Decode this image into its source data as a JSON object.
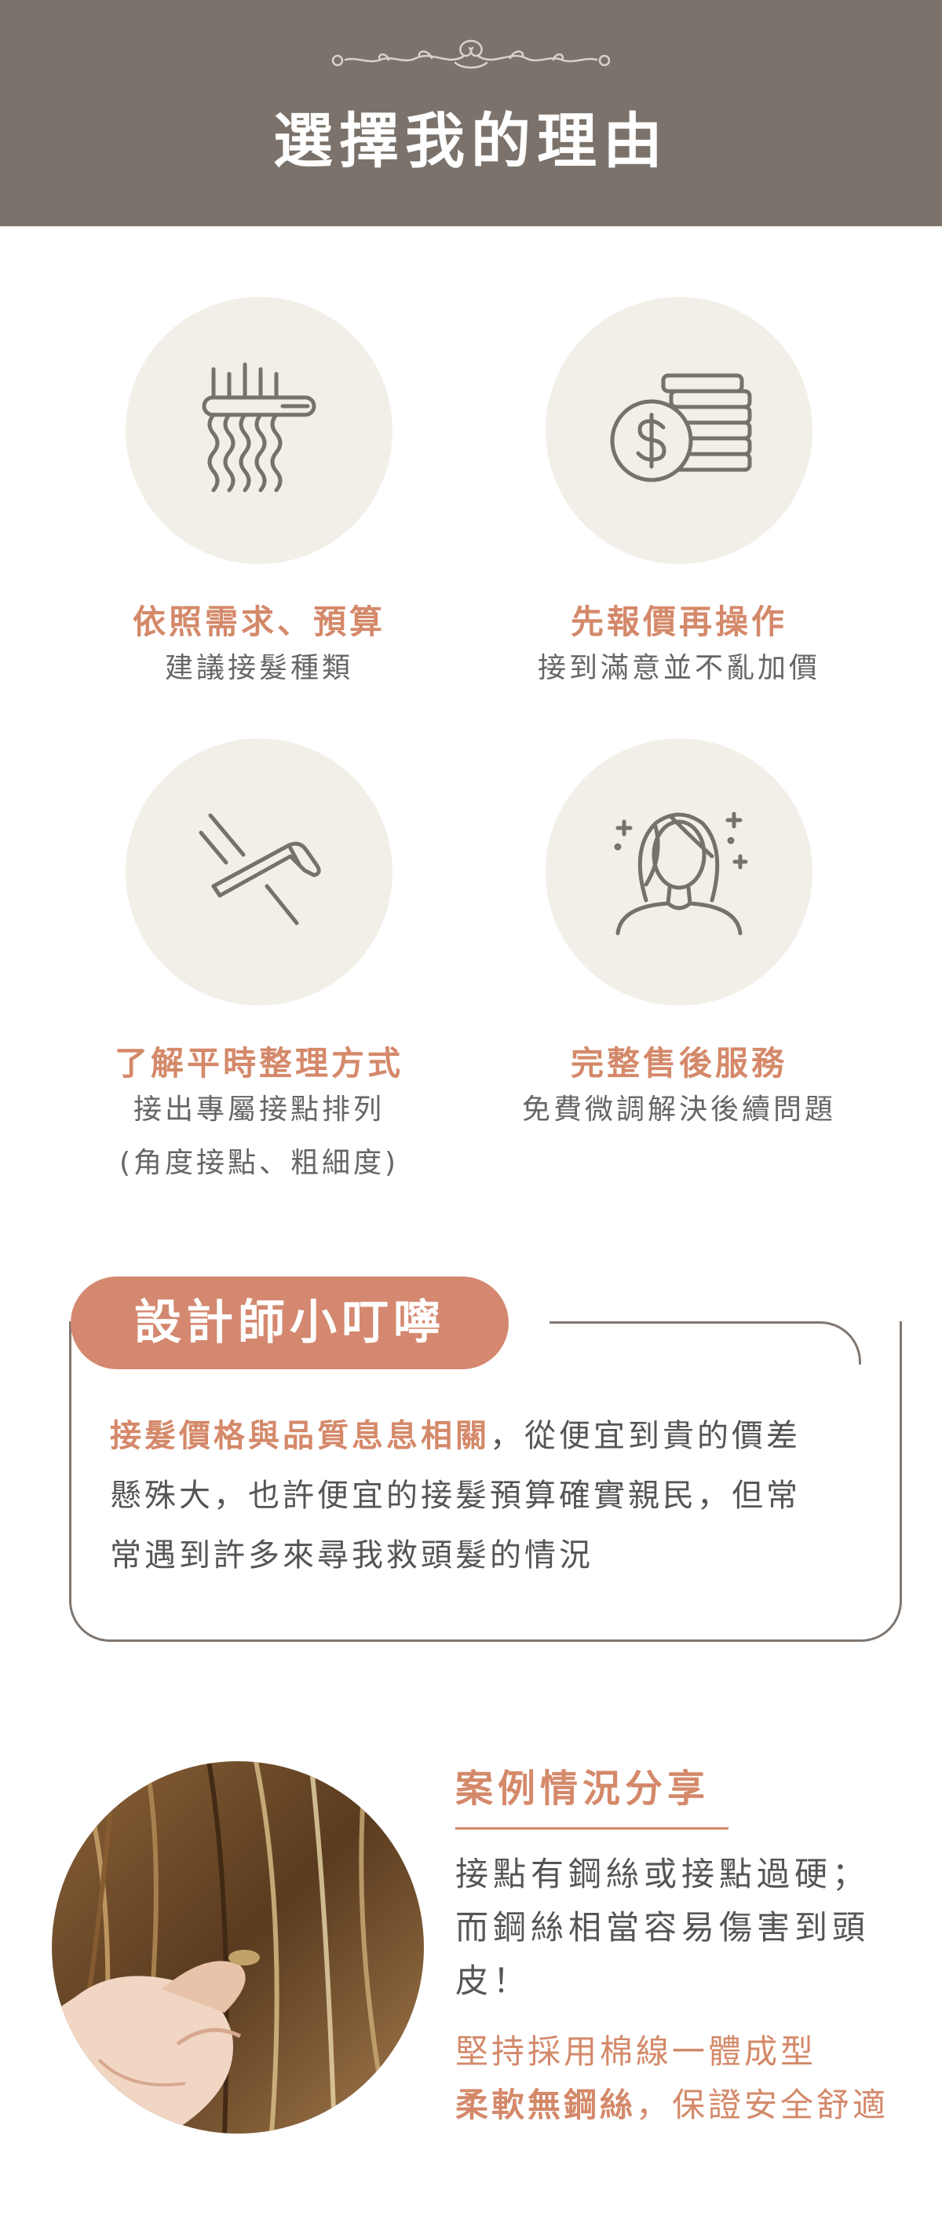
{
  "header": {
    "title": "選擇我的理由"
  },
  "features": [
    {
      "icon": "hair-extension-clip-icon",
      "title": "依照需求、預算",
      "desc": [
        "建議接髮種類"
      ]
    },
    {
      "icon": "coins-money-icon",
      "title": "先報價再操作",
      "desc": [
        "接到滿意並不亂加價"
      ]
    },
    {
      "icon": "flat-iron-icon",
      "title": "了解平時整理方式",
      "desc": [
        "接出專屬接點排列",
        "(角度接點、粗細度)"
      ]
    },
    {
      "icon": "woman-sparkle-icon",
      "title": "完整售後服務",
      "desc": [
        "免費微調解決後續問題"
      ]
    }
  ],
  "tip": {
    "label": "設計師小叮嚀",
    "highlight": "接髮價格與品質息息相關",
    "lines": [
      "，從便宜到貴的價差",
      "懸殊大，也許便宜的接髮預算確實親民，但常",
      "常遇到許多來尋我救頭髮的情況"
    ]
  },
  "case": {
    "title": "案例情況分享",
    "text": [
      "接點有鋼絲或接點過硬；",
      "而鋼絲相當容易傷害到頭",
      "皮！"
    ],
    "accent_line1": "堅持採用棉線一體成型",
    "accent_bold": "柔軟無鋼絲",
    "accent_rest": "，保證安全舒適"
  },
  "colors": {
    "header_bg": "#7b736b",
    "accent": "#d4896a",
    "circle_bg": "#f2efe8",
    "pill_bg": "#d4886f"
  }
}
